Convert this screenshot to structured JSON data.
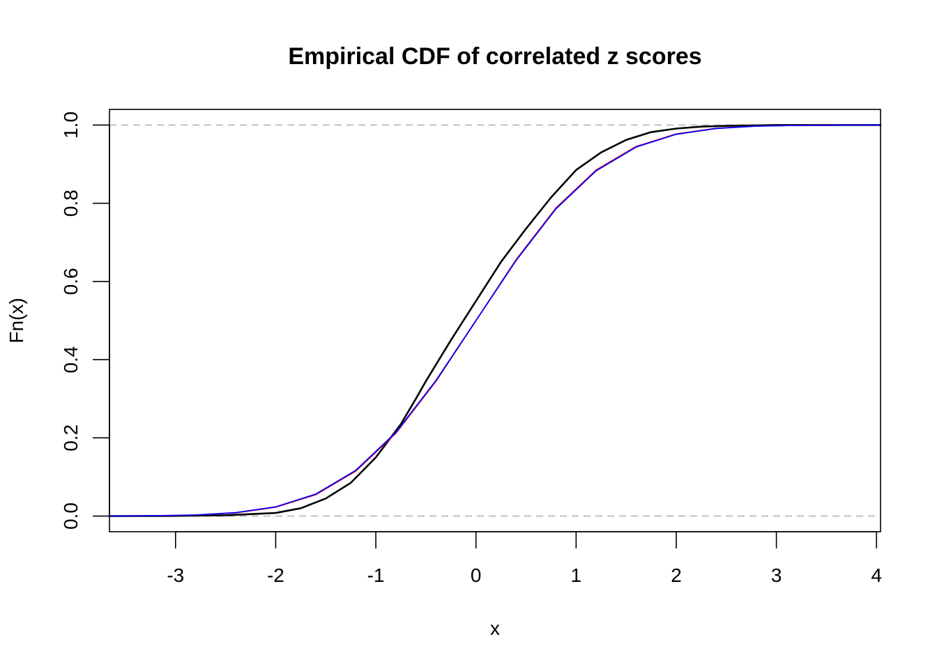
{
  "chart_data": {
    "type": "line",
    "title": "Empirical CDF of correlated z scores",
    "xlabel": "x",
    "ylabel": "Fn(x)",
    "xlim": [
      -3.66,
      4.04
    ],
    "ylim": [
      -0.04,
      1.04
    ],
    "x_ticks": [
      -3,
      -2,
      -1,
      0,
      1,
      2,
      3,
      4
    ],
    "x_tick_labels": [
      "-3",
      "-2",
      "-1",
      "0",
      "1",
      "2",
      "3",
      "4"
    ],
    "y_ticks": [
      0.0,
      0.2,
      0.4,
      0.6,
      0.8,
      1.0
    ],
    "y_tick_labels": [
      "0.0",
      "0.2",
      "0.4",
      "0.6",
      "0.8",
      "1.0"
    ],
    "reference_lines": [
      {
        "y": 0,
        "style": "dashed",
        "color": "#b3b3b3"
      },
      {
        "y": 1,
        "style": "dashed",
        "color": "#b3b3b3"
      }
    ],
    "grid": false,
    "series": [
      {
        "color": "#000000",
        "width": 2.6,
        "x": [
          -3.66,
          -3.0,
          -2.5,
          -2.0,
          -1.75,
          -1.5,
          -1.25,
          -1.0,
          -0.75,
          -0.6,
          -0.5,
          -0.25,
          0.0,
          0.25,
          0.5,
          0.75,
          1.0,
          1.25,
          1.5,
          1.75,
          2.0,
          2.25,
          2.5,
          2.75,
          3.0,
          4.04
        ],
        "y": [
          0.0,
          0.0005,
          0.002,
          0.008,
          0.02,
          0.045,
          0.085,
          0.15,
          0.235,
          0.3,
          0.345,
          0.45,
          0.55,
          0.65,
          0.735,
          0.815,
          0.885,
          0.93,
          0.962,
          0.982,
          0.991,
          0.996,
          0.998,
          0.999,
          1.0,
          1.0
        ]
      },
      {
        "color": "#ff0000",
        "width": 1.8,
        "x": [
          -3.66,
          -3.2,
          -2.8,
          -2.4,
          -2.0,
          -1.6,
          -1.2,
          -0.8,
          -0.4,
          0.0,
          0.4,
          0.8,
          1.2,
          1.6,
          2.0,
          2.4,
          2.8,
          3.2,
          4.04
        ],
        "y": [
          0.0001,
          0.0007,
          0.0026,
          0.0082,
          0.0228,
          0.0548,
          0.1151,
          0.2119,
          0.3446,
          0.5,
          0.6554,
          0.7881,
          0.8849,
          0.9452,
          0.9772,
          0.9918,
          0.9974,
          0.9993,
          1.0
        ]
      },
      {
        "color": "#0000ff",
        "width": 1.8,
        "x": [
          -3.66,
          -3.2,
          -2.8,
          -2.4,
          -2.0,
          -1.6,
          -1.2,
          -0.8,
          -0.4,
          0.0,
          0.4,
          0.8,
          1.2,
          1.6,
          2.0,
          2.4,
          2.8,
          3.2,
          4.04
        ],
        "y": [
          0.0001,
          0.0008,
          0.0028,
          0.0087,
          0.0236,
          0.0561,
          0.1169,
          0.2138,
          0.3465,
          0.5,
          0.6535,
          0.7862,
          0.8831,
          0.9439,
          0.9764,
          0.9913,
          0.9972,
          0.9992,
          1.0
        ]
      }
    ]
  }
}
